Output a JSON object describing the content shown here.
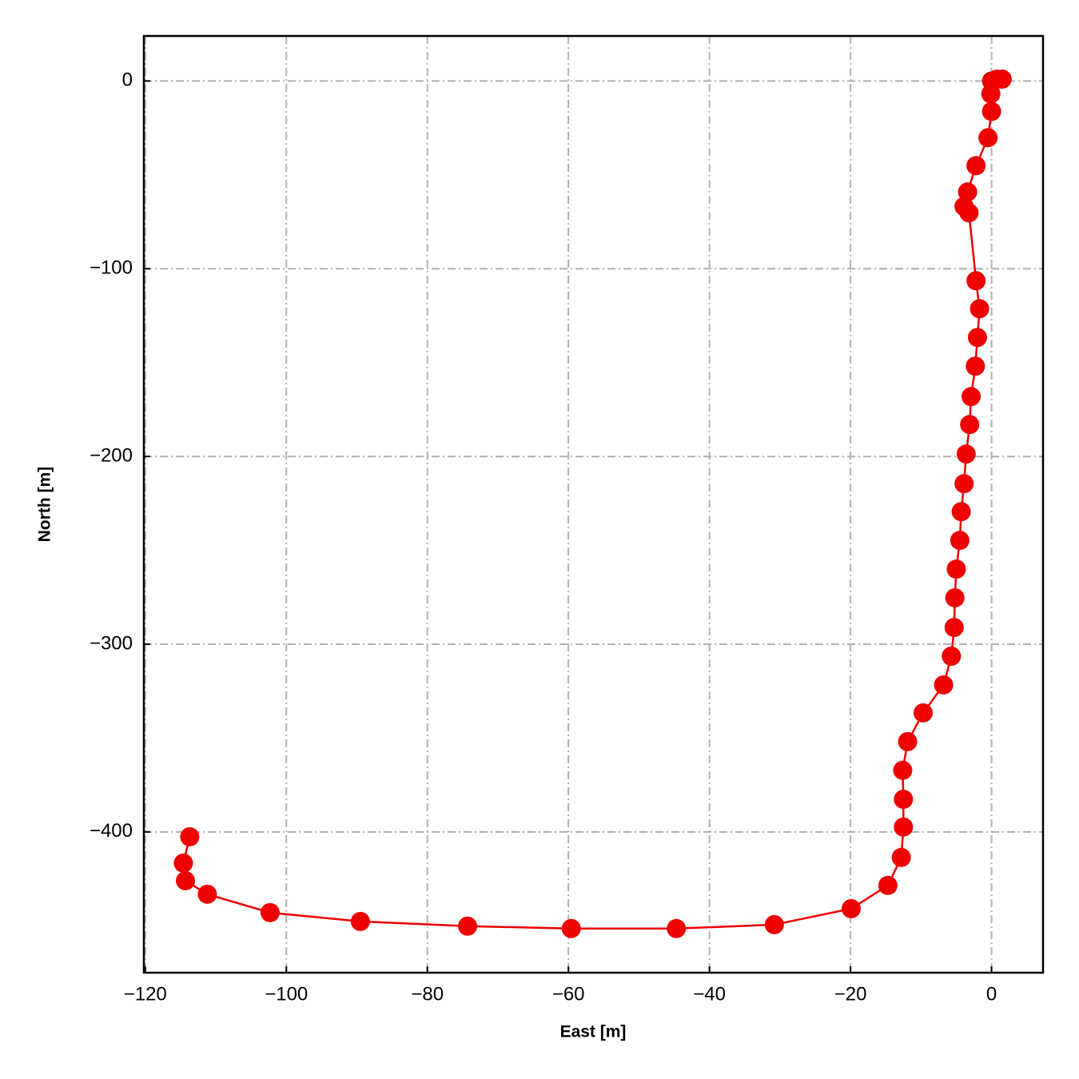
{
  "chart_data": {
    "type": "line",
    "xlabel": "East [m]",
    "ylabel": "North [m]",
    "xlim": [
      -120.2,
      7.3
    ],
    "ylim": [
      -475,
      24
    ],
    "xticks": [
      {
        "value": -120,
        "label": "−120"
      },
      {
        "value": -100,
        "label": "−100"
      },
      {
        "value": -80,
        "label": "−80"
      },
      {
        "value": -60,
        "label": "−60"
      },
      {
        "value": -40,
        "label": "−40"
      },
      {
        "value": -20,
        "label": "−20"
      },
      0
    ],
    "yticks": [
      0,
      {
        "value": -100,
        "label": "−100"
      },
      {
        "value": -200,
        "label": "−200"
      },
      {
        "value": -300,
        "label": "−300"
      },
      {
        "value": -400,
        "label": "−400"
      }
    ],
    "grid": true,
    "series": [
      {
        "color": "#ee0000",
        "x": [
          0,
          0.8,
          1.5,
          -0.1,
          0,
          -0.5,
          -2.2,
          -3.4,
          -3.9,
          -3.2,
          -2.2,
          -1.7,
          -2.0,
          -2.3,
          -2.9,
          -3.1,
          -3.6,
          -3.9,
          -4.3,
          -4.5,
          -5.0,
          -5.2,
          -5.3,
          -5.7,
          -6.8,
          -9.7,
          -11.9,
          -12.6,
          -12.5,
          -12.5,
          -12.8,
          -14.7,
          -19.9,
          -30.8,
          -44.7,
          -59.6,
          -74.3,
          -89.5,
          -102.3,
          -111.2,
          -114.3,
          -114.6,
          -113.7
        ],
        "values": [
          0,
          1,
          1,
          -6.8,
          -16.2,
          -30.2,
          -45.1,
          -59.1,
          -66.8,
          -70.2,
          -106.4,
          -121.3,
          -136.6,
          -151.9,
          -168.1,
          -183,
          -198.7,
          -214.5,
          -229.4,
          -244.7,
          -260,
          -275.3,
          -291.1,
          -306.4,
          -321.7,
          -336.6,
          -351.9,
          -367.2,
          -382.6,
          -397.4,
          -413.6,
          -428.5,
          -440.9,
          -449.4,
          -451.5,
          -451.5,
          -450.2,
          -447.7,
          -443,
          -433.2,
          -426,
          -416.6,
          -402.6
        ]
      }
    ]
  }
}
